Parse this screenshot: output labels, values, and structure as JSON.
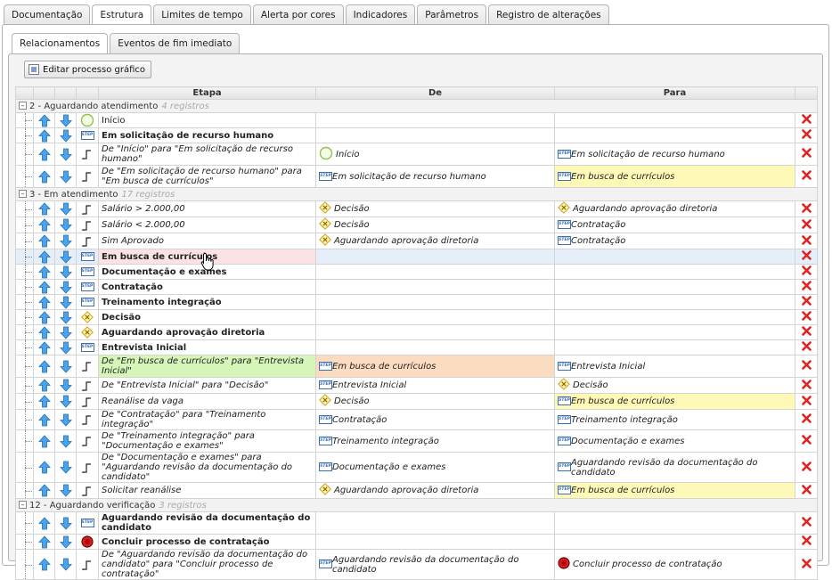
{
  "top_tabs": [
    "Documentação",
    "Estrutura",
    "Limites de tempo",
    "Alerta por cores",
    "Indicadores",
    "Parâmetros",
    "Registro de alterações"
  ],
  "active_top_tab": "Estrutura",
  "sub_tabs": [
    "Relacionamentos",
    "Eventos de fim imediato"
  ],
  "active_sub_tab": "Relacionamentos",
  "edit_button": "Editar processo gráfico",
  "columns": {
    "etapa": "Etapa",
    "de": "De",
    "para": "Para"
  },
  "groups": [
    {
      "title": "2 - Aguardando atendimento",
      "count": "4 registros",
      "rows": [
        {
          "kind": "start",
          "etapa": "Início",
          "bold": false,
          "ital": false,
          "de": "",
          "de_icon": "",
          "para": "",
          "para_icon": ""
        },
        {
          "kind": "step",
          "etapa": "Em solicitação de recurso humano",
          "bold": true,
          "ital": false,
          "de": "",
          "de_icon": "",
          "para": "",
          "para_icon": ""
        },
        {
          "kind": "flow",
          "etapa": "De \"Início\" para \"Em solicitação de recurso humano\"",
          "bold": false,
          "ital": true,
          "tall": true,
          "de": "Início",
          "de_icon": "start",
          "para": "Em solicitação de recurso humano",
          "para_icon": "step"
        },
        {
          "kind": "flow",
          "etapa": "De \"Em solicitação de recurso humano\" para \"Em busca de currículos\"",
          "bold": false,
          "ital": true,
          "tall": true,
          "de": "Em solicitação de recurso humano",
          "de_icon": "step",
          "para": "Em busca de currículos",
          "para_icon": "step",
          "para_hl": "yellow"
        }
      ]
    },
    {
      "title": "3 - Em atendimento",
      "count": "17 registros",
      "rows": [
        {
          "kind": "flow",
          "etapa": "Salário > 2.000,00",
          "ital": true,
          "de": "Decisão",
          "de_icon": "decision",
          "para": "Aguardando aprovação diretoria",
          "para_icon": "decision"
        },
        {
          "kind": "flow",
          "etapa": "Salário < 2.000,00",
          "ital": true,
          "de": "Decisão",
          "de_icon": "decision",
          "para": "Contratação",
          "para_icon": "step"
        },
        {
          "kind": "flow",
          "etapa": "Sim Aprovado",
          "ital": true,
          "de": "Aguardando aprovação diretoria",
          "de_icon": "decision",
          "para": "Contratação",
          "para_icon": "step"
        },
        {
          "kind": "step",
          "etapa": "Em busca de currículos",
          "bold": true,
          "hover": true,
          "etapa_hl": "pink",
          "de": "",
          "de_icon": "",
          "para": "",
          "para_icon": ""
        },
        {
          "kind": "step",
          "etapa": "Documentação e exames",
          "bold": true,
          "de": "",
          "de_icon": "",
          "para": "",
          "para_icon": ""
        },
        {
          "kind": "step",
          "etapa": "Contratação",
          "bold": true,
          "de": "",
          "de_icon": "",
          "para": "",
          "para_icon": ""
        },
        {
          "kind": "step",
          "etapa": "Treinamento integração",
          "bold": true,
          "de": "",
          "de_icon": "",
          "para": "",
          "para_icon": ""
        },
        {
          "kind": "decision",
          "etapa": "Decisão",
          "bold": true,
          "de": "",
          "de_icon": "",
          "para": "",
          "para_icon": ""
        },
        {
          "kind": "decision",
          "etapa": "Aguardando aprovação diretoria",
          "bold": true,
          "de": "",
          "de_icon": "",
          "para": "",
          "para_icon": ""
        },
        {
          "kind": "step",
          "etapa": "Entrevista Inicial",
          "bold": true,
          "de": "",
          "de_icon": "",
          "para": "",
          "para_icon": ""
        },
        {
          "kind": "flow",
          "etapa": "De \"Em busca de currículos\" para \"Entrevista Inicial\"",
          "ital": true,
          "tall": true,
          "etapa_hl": "green",
          "de": "Em busca de currículos",
          "de_icon": "step",
          "de_hl": "orange",
          "para": "Entrevista Inicial",
          "para_icon": "step"
        },
        {
          "kind": "flow",
          "etapa": "De \"Entrevista Inicial\" para \"Decisão\"",
          "ital": true,
          "de": "Entrevista Inicial",
          "de_icon": "step",
          "para": "Decisão",
          "para_icon": "decision"
        },
        {
          "kind": "flow",
          "etapa": "Reanálise da vaga",
          "ital": true,
          "de": "Decisão",
          "de_icon": "decision",
          "para": "Em busca de currículos",
          "para_icon": "step",
          "para_hl": "yellow"
        },
        {
          "kind": "flow",
          "etapa": "De \"Contratação\" para \"Treinamento integração\"",
          "ital": true,
          "de": "Contratação",
          "de_icon": "step",
          "para": "Treinamento integração",
          "para_icon": "step"
        },
        {
          "kind": "flow",
          "etapa": "De \"Treinamento integração\" para \"Documentação e exames\"",
          "ital": true,
          "tall": true,
          "de": "Treinamento integração",
          "de_icon": "step",
          "para": "Documentação e exames",
          "para_icon": "step"
        },
        {
          "kind": "flow",
          "etapa": "De \"Documentação e exames\" para \"Aguardando revisão da documentação do candidato\"",
          "ital": true,
          "tall": true,
          "de": "Documentação e exames",
          "de_icon": "step",
          "para": "Aguardando revisão da documentação do candidato",
          "para_icon": "step"
        },
        {
          "kind": "flow",
          "etapa": "Solicitar reanálise",
          "ital": true,
          "de": "Aguardando aprovação diretoria",
          "de_icon": "decision",
          "para": "Em busca de currículos",
          "para_icon": "step",
          "para_hl": "yellow"
        }
      ]
    },
    {
      "title": "12 - Aguardando verificação",
      "count": "3 registros",
      "rows": [
        {
          "kind": "step",
          "etapa": "Aguardando revisão da documentação do candidato",
          "bold": true,
          "tall": true,
          "de": "",
          "de_icon": "",
          "para": "",
          "para_icon": ""
        },
        {
          "kind": "end",
          "etapa": "Concluir processo de contratação",
          "bold": true,
          "de": "",
          "de_icon": "",
          "para": "",
          "para_icon": ""
        },
        {
          "kind": "flow",
          "etapa": "De \"Aguardando revisão da documentação do candidato\" para \"Concluir processo de contratação\"",
          "ital": true,
          "tall": true,
          "de": "Aguardando revisão da documentação do candidato",
          "de_icon": "step",
          "para": "Concluir processo de contratação",
          "para_icon": "end"
        }
      ]
    }
  ]
}
